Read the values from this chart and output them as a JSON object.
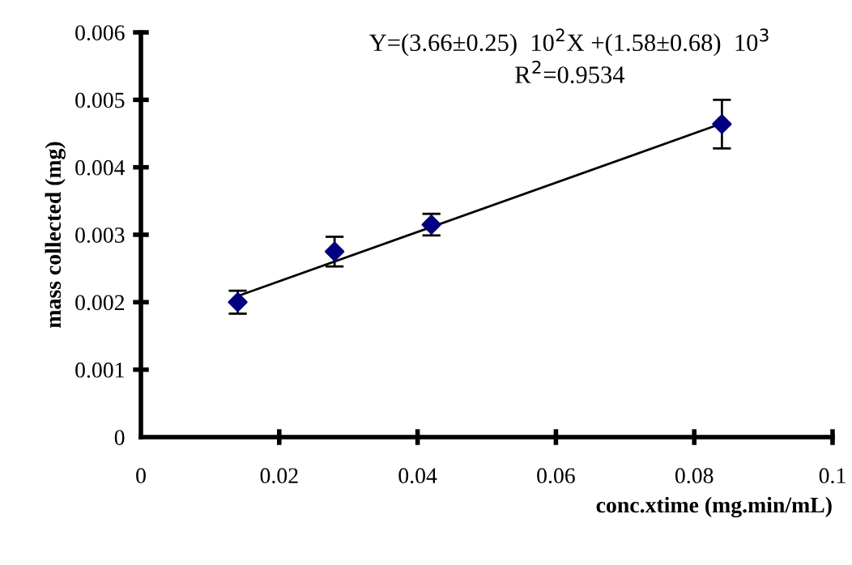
{
  "chart_data": {
    "type": "scatter",
    "xlabel": "conc.xtime (mg.min/mL)",
    "ylabel": "mass collected (mg)",
    "annotations": [
      "Y=(3.66±0.25)  10$^{2}$X +(1.58±0.68)  10$^{3}$",
      "R$^{2}$=0.9534"
    ],
    "series": [
      {
        "color": "#000080",
        "marker": "diamond",
        "x": [
          0.014,
          0.028,
          0.042,
          0.084
        ],
        "values": [
          0.002,
          0.00275,
          0.00315,
          0.00464
        ],
        "errors": [
          0.00017,
          0.00022,
          0.00016,
          0.00036
        ]
      },
      {
        "type": "line",
        "color": "#000000",
        "line_style": "solid",
        "x": [
          0.014,
          0.084
        ],
        "values": [
          0.00209,
          0.00465
        ]
      }
    ],
    "xlim": [
      0,
      0.1
    ],
    "xticks": [
      0,
      0.02,
      0.04,
      0.06,
      0.08,
      0.1
    ],
    "ylim": [
      0,
      0.006
    ],
    "yticks": [
      0,
      0.001,
      0.002,
      0.003,
      0.004,
      0.005,
      0.006
    ],
    "grid": false,
    "legend": false
  }
}
